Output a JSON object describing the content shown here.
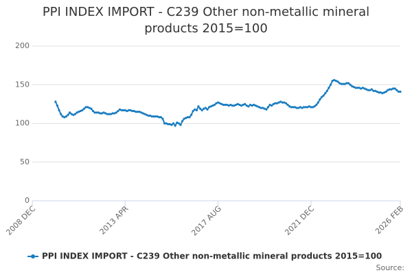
{
  "chart_data": {
    "type": "line",
    "title": "PPI INDEX IMPORT - C239 Other non-metallic mineral products 2015=100",
    "source": "Source:",
    "categories": [
      "2008 DEC",
      null,
      null,
      null,
      null,
      null,
      null,
      null,
      null,
      null,
      null,
      null,
      null,
      null,
      null,
      null,
      null,
      null,
      null,
      null,
      null,
      null,
      null,
      null,
      null,
      null,
      null,
      null,
      null,
      null,
      null,
      null,
      null,
      null,
      null,
      null,
      null,
      null,
      null,
      null,
      null,
      null,
      null,
      null,
      null,
      null,
      null,
      null,
      null,
      null,
      null,
      null,
      "2013 APR",
      null,
      null,
      null,
      null,
      null,
      null,
      null,
      null,
      null,
      null,
      null,
      null,
      null,
      null,
      null,
      null,
      null,
      null,
      null,
      null,
      null,
      null,
      null,
      null,
      null,
      null,
      null,
      null,
      null,
      null,
      null,
      null,
      null,
      null,
      null,
      null,
      null,
      null,
      null,
      null,
      null,
      null,
      null,
      null,
      null,
      null,
      null,
      null,
      null,
      null,
      null,
      "2017 AUG",
      null,
      null,
      null,
      null,
      null,
      null,
      null,
      null,
      null,
      null,
      null,
      null,
      null,
      null,
      null,
      null,
      null,
      null,
      null,
      null,
      null,
      null,
      null,
      null,
      null,
      null,
      null,
      null,
      null,
      null,
      null,
      null,
      null,
      null,
      null,
      null,
      null,
      null,
      null,
      null,
      null,
      null,
      null,
      null,
      null,
      null,
      null,
      null,
      null,
      null,
      null,
      "2021 DEC",
      null,
      null,
      null,
      null,
      null,
      null,
      null,
      null,
      null,
      null,
      null,
      null,
      null,
      null,
      null,
      null,
      null,
      null,
      null,
      null,
      null,
      null,
      null,
      null,
      null,
      null,
      null,
      null,
      null,
      null,
      null,
      null,
      null,
      null,
      null,
      null,
      null,
      null,
      null,
      null,
      null,
      null,
      null,
      null,
      null,
      null,
      null,
      null,
      null,
      "2026 FEB"
    ],
    "series": [
      {
        "name": "PPI INDEX IMPORT - C239 Other non-metallic mineral products 2015=100",
        "color": "#1a7dc0",
        "values": [
          null,
          null,
          null,
          null,
          null,
          null,
          null,
          null,
          null,
          null,
          null,
          null,
          null,
          128,
          123,
          117,
          112,
          109,
          108,
          109,
          111,
          114,
          112,
          111,
          112,
          114,
          115,
          116,
          117,
          119,
          121,
          121,
          120,
          119,
          116,
          114,
          114,
          114,
          113,
          113,
          114,
          113,
          112,
          112,
          112,
          113,
          113,
          114,
          116,
          118,
          117,
          117,
          117,
          116,
          117,
          117,
          116,
          116,
          115,
          115,
          115,
          114,
          113,
          112,
          111,
          110,
          110,
          109,
          109,
          109,
          109,
          108,
          108,
          106,
          100,
          100,
          99,
          99,
          98,
          100,
          97,
          101,
          100,
          98,
          103,
          106,
          107,
          108,
          108,
          111,
          116,
          118,
          117,
          122,
          119,
          117,
          119,
          120,
          118,
          121,
          122,
          123,
          124,
          126,
          127,
          126,
          125,
          124,
          124,
          124,
          123,
          124,
          123,
          123,
          124,
          125,
          124,
          123,
          124,
          125,
          123,
          122,
          124,
          123,
          124,
          123,
          122,
          121,
          120,
          120,
          119,
          118,
          121,
          124,
          123,
          125,
          126,
          126,
          127,
          128,
          127,
          127,
          126,
          124,
          122,
          121,
          121,
          121,
          120,
          120,
          121,
          120,
          121,
          121,
          121,
          122,
          121,
          121,
          122,
          124,
          127,
          131,
          134,
          136,
          139,
          142,
          146,
          150,
          155,
          156,
          155,
          154,
          152,
          151,
          151,
          151,
          152,
          152,
          150,
          148,
          147,
          146,
          146,
          146,
          145,
          146,
          145,
          144,
          143,
          143,
          144,
          142,
          142,
          141,
          140,
          140,
          139,
          140,
          141,
          143,
          144,
          144,
          145,
          145,
          143,
          141,
          141
        ]
      }
    ],
    "ylim": [
      0,
      200
    ],
    "yticks": [
      0,
      50,
      100,
      150,
      200
    ],
    "grid": true
  }
}
